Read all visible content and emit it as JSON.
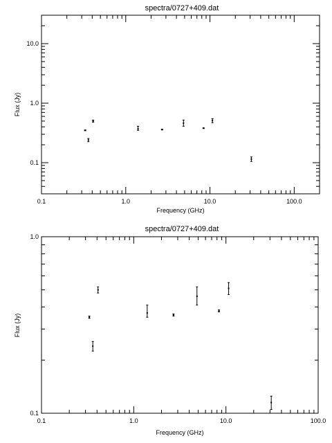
{
  "chart_data": [
    {
      "type": "scatter",
      "title": "spectra/0727+409.dat",
      "xlabel": "Frequency (GHz)",
      "ylabel": "Flux (Jy)",
      "xscale": "log",
      "yscale": "log",
      "xlim": [
        0.1,
        200
      ],
      "ylim": [
        0.03,
        30
      ],
      "xticks": [
        "0.1",
        "1.0",
        "10.0",
        "100.0"
      ],
      "yticks": [
        "0.1",
        "1.0",
        "10.0"
      ],
      "points": [
        {
          "x": 0.33,
          "y": 0.35,
          "ylo": 0.345,
          "yhi": 0.355
        },
        {
          "x": 0.36,
          "y": 0.24,
          "ylo": 0.225,
          "yhi": 0.255
        },
        {
          "x": 0.41,
          "y": 0.5,
          "ylo": 0.48,
          "yhi": 0.52
        },
        {
          "x": 1.4,
          "y": 0.37,
          "ylo": 0.35,
          "yhi": 0.41
        },
        {
          "x": 2.7,
          "y": 0.36,
          "ylo": 0.355,
          "yhi": 0.365
        },
        {
          "x": 4.85,
          "y": 0.46,
          "ylo": 0.41,
          "yhi": 0.52
        },
        {
          "x": 8.4,
          "y": 0.38,
          "ylo": 0.375,
          "yhi": 0.385
        },
        {
          "x": 10.7,
          "y": 0.51,
          "ylo": 0.47,
          "yhi": 0.55
        },
        {
          "x": 31,
          "y": 0.115,
          "ylo": 0.105,
          "yhi": 0.125
        }
      ]
    },
    {
      "type": "scatter",
      "title": "spectra/0727+409.dat",
      "xlabel": "Frequency (GHz)",
      "ylabel": "Flux (Jy)",
      "xscale": "log",
      "yscale": "log",
      "xlim": [
        0.1,
        100
      ],
      "ylim": [
        0.1,
        1.0
      ],
      "xticks": [
        "0.1",
        "1.0",
        "10.0",
        "100.0"
      ],
      "yticks": [
        "0.1",
        "1.0"
      ],
      "points": [
        {
          "x": 0.33,
          "y": 0.35,
          "ylo": 0.345,
          "yhi": 0.355
        },
        {
          "x": 0.36,
          "y": 0.24,
          "ylo": 0.225,
          "yhi": 0.255
        },
        {
          "x": 0.41,
          "y": 0.5,
          "ylo": 0.48,
          "yhi": 0.52
        },
        {
          "x": 1.4,
          "y": 0.37,
          "ylo": 0.35,
          "yhi": 0.41
        },
        {
          "x": 2.7,
          "y": 0.36,
          "ylo": 0.355,
          "yhi": 0.365
        },
        {
          "x": 4.85,
          "y": 0.46,
          "ylo": 0.41,
          "yhi": 0.52
        },
        {
          "x": 8.4,
          "y": 0.38,
          "ylo": 0.375,
          "yhi": 0.385
        },
        {
          "x": 10.7,
          "y": 0.51,
          "ylo": 0.47,
          "yhi": 0.55
        },
        {
          "x": 31,
          "y": 0.115,
          "ylo": 0.105,
          "yhi": 0.125
        }
      ]
    }
  ]
}
